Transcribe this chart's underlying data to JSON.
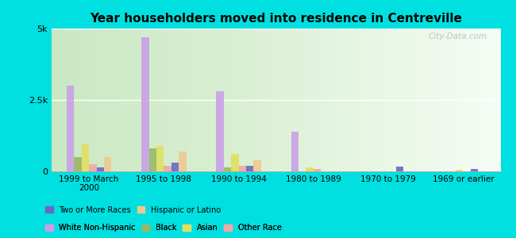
{
  "title": "Year householders moved into residence in Centreville",
  "categories": [
    "1999 to March\n2000",
    "1995 to 1998",
    "1990 to 1994",
    "1980 to 1989",
    "1970 to 1979",
    "1969 or earlier"
  ],
  "series_order": [
    "White Non-Hispanic",
    "Black",
    "Asian",
    "Other Race",
    "Two or More Races",
    "Hispanic or Latino"
  ],
  "series": {
    "White Non-Hispanic": [
      3000,
      4700,
      2800,
      1400,
      0,
      0
    ],
    "Black": [
      500,
      800,
      150,
      0,
      0,
      0
    ],
    "Asian": [
      950,
      900,
      600,
      150,
      0,
      50
    ],
    "Other Race": [
      250,
      200,
      200,
      80,
      0,
      0
    ],
    "Two or More Races": [
      150,
      300,
      200,
      0,
      180,
      80
    ],
    "Hispanic or Latino": [
      500,
      700,
      400,
      0,
      0,
      0
    ]
  },
  "colors": {
    "White Non-Hispanic": "#c9a0e8",
    "Black": "#98b868",
    "Asian": "#e0e060",
    "Other Race": "#f0a8a8",
    "Two or More Races": "#6868c8",
    "Hispanic or Latino": "#f0c890"
  },
  "legend_marker_colors": {
    "White Non-Hispanic": "#c9a0e8",
    "Black": "#98b868",
    "Asian": "#e0e060",
    "Other Race": "#f0a8a8",
    "Two or More Races": "#6868c8",
    "Hispanic or Latino": "#f0c890"
  },
  "ylim": [
    0,
    5000
  ],
  "yticks": [
    0,
    2500,
    5000
  ],
  "ytick_labels": [
    "0",
    "2.5k",
    "5k"
  ],
  "outer_bg": "#00e0e0",
  "plot_bg_left": "#c8e8c0",
  "plot_bg_right": "#f0fff0",
  "watermark": "City-Data.com",
  "legend_row1": [
    "White Non-Hispanic",
    "Black",
    "Asian",
    "Other Race"
  ],
  "legend_row2": [
    "Two or More Races",
    "Hispanic or Latino"
  ]
}
